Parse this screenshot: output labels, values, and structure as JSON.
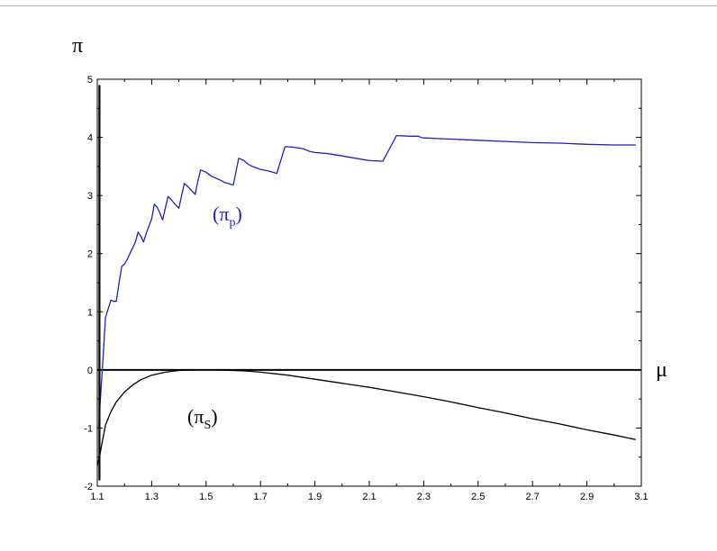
{
  "chart_data": {
    "type": "line",
    "title": "",
    "xlabel": "μ",
    "ylabel": "π",
    "xlim": [
      1.1,
      3.1
    ],
    "ylim": [
      -2,
      5
    ],
    "x_ticks": [
      "1.1",
      "1.3",
      "1.5",
      "1.7",
      "1.9",
      "2.1",
      "2.3",
      "2.5",
      "2.7",
      "2.9",
      "3.1"
    ],
    "y_ticks": [
      "-2",
      "-1",
      "0",
      "1",
      "2",
      "3",
      "4",
      "5"
    ],
    "grid": false,
    "legend": "none",
    "annotations": [
      {
        "id": "pi-p",
        "base": "(π",
        "sub": "p",
        "close": ")",
        "color": "#1f1fcc"
      },
      {
        "id": "pi-s",
        "base": "(π",
        "sub": "S",
        "close": ")",
        "color": "#000000"
      }
    ],
    "series": [
      {
        "id": "pi-p",
        "color": "#1f1fcc",
        "x": [
          1.106,
          1.11,
          1.12,
          1.13,
          1.14,
          1.15,
          1.16,
          1.17,
          1.18,
          1.19,
          1.2,
          1.21,
          1.22,
          1.23,
          1.24,
          1.25,
          1.26,
          1.27,
          1.28,
          1.3,
          1.31,
          1.32,
          1.33,
          1.34,
          1.36,
          1.37,
          1.38,
          1.4,
          1.41,
          1.42,
          1.44,
          1.46,
          1.47,
          1.48,
          1.5,
          1.52,
          1.55,
          1.57,
          1.6,
          1.62,
          1.64,
          1.65,
          1.67,
          1.7,
          1.73,
          1.76,
          1.79,
          1.82,
          1.85,
          1.86,
          1.87,
          1.88,
          1.9,
          1.95,
          2.0,
          2.05,
          2.1,
          2.15,
          2.2,
          2.25,
          2.28,
          2.29,
          2.3,
          2.35,
          2.4,
          2.5,
          2.6,
          2.7,
          2.8,
          2.9,
          3.0,
          3.08
        ],
        "y": [
          -1.0,
          -0.6,
          0.1,
          0.9,
          1.05,
          1.2,
          1.18,
          1.18,
          1.5,
          1.78,
          1.82,
          1.9,
          2.0,
          2.1,
          2.2,
          2.37,
          2.3,
          2.2,
          2.35,
          2.6,
          2.85,
          2.8,
          2.7,
          2.58,
          2.98,
          2.94,
          2.88,
          2.78,
          3.0,
          3.21,
          3.12,
          3.02,
          3.25,
          3.44,
          3.4,
          3.33,
          3.27,
          3.22,
          3.18,
          3.64,
          3.6,
          3.55,
          3.5,
          3.45,
          3.42,
          3.38,
          3.84,
          3.83,
          3.81,
          3.8,
          3.78,
          3.76,
          3.74,
          3.72,
          3.68,
          3.64,
          3.6,
          3.59,
          4.03,
          4.02,
          4.02,
          4.0,
          3.99,
          3.98,
          3.97,
          3.95,
          3.93,
          3.91,
          3.9,
          3.88,
          3.87,
          3.87
        ]
      },
      {
        "id": "pi-s",
        "color": "#000000",
        "x": [
          1.1,
          1.11,
          1.12,
          1.13,
          1.15,
          1.17,
          1.2,
          1.23,
          1.26,
          1.3,
          1.35,
          1.4,
          1.45,
          1.5,
          1.55,
          1.6,
          1.65,
          1.7,
          1.8,
          1.9,
          2.0,
          2.1,
          2.2,
          2.3,
          2.4,
          2.5,
          2.6,
          2.7,
          2.8,
          2.9,
          3.0,
          3.08
        ],
        "y": [
          -1.65,
          -1.45,
          -1.2,
          -0.95,
          -0.72,
          -0.55,
          -0.38,
          -0.26,
          -0.17,
          -0.09,
          -0.04,
          -0.01,
          0.0,
          0.0,
          0.0,
          -0.01,
          -0.02,
          -0.04,
          -0.09,
          -0.16,
          -0.23,
          -0.3,
          -0.38,
          -0.46,
          -0.55,
          -0.65,
          -0.74,
          -0.84,
          -0.93,
          -1.03,
          -1.12,
          -1.2
        ]
      }
    ],
    "marker_lines": [
      {
        "x": 1.108,
        "y_from": -1.9,
        "y_to": 4.9
      }
    ]
  }
}
